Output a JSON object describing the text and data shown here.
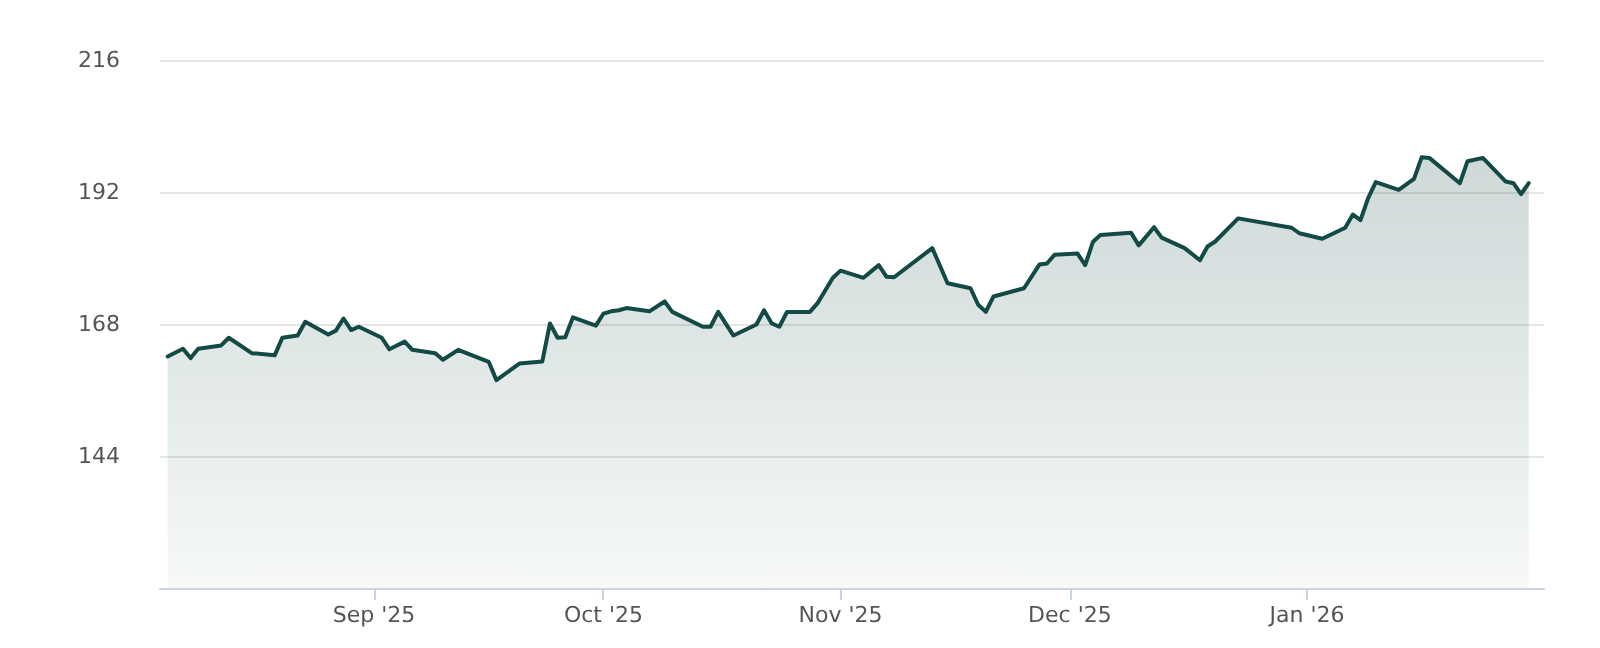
{
  "chart_data": {
    "type": "area",
    "x": [
      "2025-08-05",
      "2025-08-07",
      "2025-08-08",
      "2025-08-09",
      "2025-08-12",
      "2025-08-13",
      "2025-08-16",
      "2025-08-19",
      "2025-08-20",
      "2025-08-22",
      "2025-08-23",
      "2025-08-26",
      "2025-08-27",
      "2025-08-28",
      "2025-08-29",
      "2025-08-30",
      "2025-09-02",
      "2025-09-03",
      "2025-09-05",
      "2025-09-06",
      "2025-09-09",
      "2025-09-10",
      "2025-09-12",
      "2025-09-16",
      "2025-09-17",
      "2025-09-20",
      "2025-09-23",
      "2025-09-24",
      "2025-09-25",
      "2025-09-26",
      "2025-09-27",
      "2025-09-30",
      "2025-10-01",
      "2025-10-02",
      "2025-10-03",
      "2025-10-04",
      "2025-10-07",
      "2025-10-09",
      "2025-10-10",
      "2025-10-14",
      "2025-10-15",
      "2025-10-16",
      "2025-10-18",
      "2025-10-21",
      "2025-10-22",
      "2025-10-23",
      "2025-10-24",
      "2025-10-25",
      "2025-10-28",
      "2025-10-29",
      "2025-10-31",
      "2025-11-01",
      "2025-11-04",
      "2025-11-06",
      "2025-11-07",
      "2025-11-08",
      "2025-11-13",
      "2025-11-15",
      "2025-11-18",
      "2025-11-19",
      "2025-11-20",
      "2025-11-21",
      "2025-11-25",
      "2025-11-27",
      "2025-11-28",
      "2025-11-29",
      "2025-12-02",
      "2025-12-03",
      "2025-12-04",
      "2025-12-05",
      "2025-12-09",
      "2025-12-10",
      "2025-12-12",
      "2025-12-13",
      "2025-12-16",
      "2025-12-18",
      "2025-12-19",
      "2025-12-20",
      "2025-12-23",
      "2025-12-30",
      "2025-12-31",
      "2026-01-03",
      "2026-01-06",
      "2026-01-07",
      "2026-01-08",
      "2026-01-09",
      "2026-01-10",
      "2026-01-13",
      "2026-01-15",
      "2026-01-16",
      "2026-01-17",
      "2026-01-21",
      "2026-01-22",
      "2026-01-24",
      "2026-01-27",
      "2026-01-28",
      "2026-01-29",
      "2026-01-30"
    ],
    "series": [
      {
        "color": "#134a45",
        "values": [
          162.1,
          163.5,
          161.8,
          163.5,
          164.1,
          165.5,
          162.7,
          162.3,
          165.5,
          165.9,
          168.4,
          166.1,
          166.8,
          169.0,
          166.9,
          167.5,
          165.5,
          163.4,
          164.8,
          163.3,
          162.7,
          161.5,
          163.3,
          161.1,
          157.8,
          160.8,
          161.2,
          168.1,
          165.5,
          165.6,
          169.2,
          167.7,
          169.9,
          170.3,
          170.5,
          170.9,
          170.3,
          172.1,
          170.2,
          167.5,
          167.5,
          170.2,
          165.9,
          167.9,
          170.5,
          168.1,
          167.5,
          170.2,
          170.2,
          171.8,
          176.4,
          177.7,
          176.4,
          178.7,
          176.6,
          176.5,
          181.8,
          175.4,
          174.5,
          171.5,
          170.2,
          173.0,
          174.5,
          178.8,
          179.0,
          180.6,
          180.8,
          178.7,
          182.9,
          184.2,
          184.6,
          182.3,
          185.6,
          183.7,
          181.8,
          179.6,
          182.1,
          183.0,
          187.2,
          185.5,
          184.5,
          183.5,
          185.5,
          187.9,
          186.9,
          190.9,
          193.8,
          192.4,
          194.4,
          198.3,
          198.2,
          193.6,
          197.6,
          198.2,
          193.9,
          193.6,
          191.6,
          193.6
        ]
      }
    ],
    "xlim": [
      "2025-08-04",
      "2026-02-01"
    ],
    "xticks": [
      {
        "value": "2025-09-01",
        "label": "Sep '25"
      },
      {
        "value": "2025-10-01",
        "label": "Oct '25"
      },
      {
        "value": "2025-11-01",
        "label": "Nov '25"
      },
      {
        "value": "2025-12-01",
        "label": "Dec '25"
      },
      {
        "value": "2026-01-01",
        "label": "Jan '26"
      }
    ],
    "ylim": [
      120,
      216
    ],
    "yticks": [
      144,
      168,
      192,
      216
    ],
    "grid": "y",
    "marker": "none",
    "line_style": "solid"
  }
}
